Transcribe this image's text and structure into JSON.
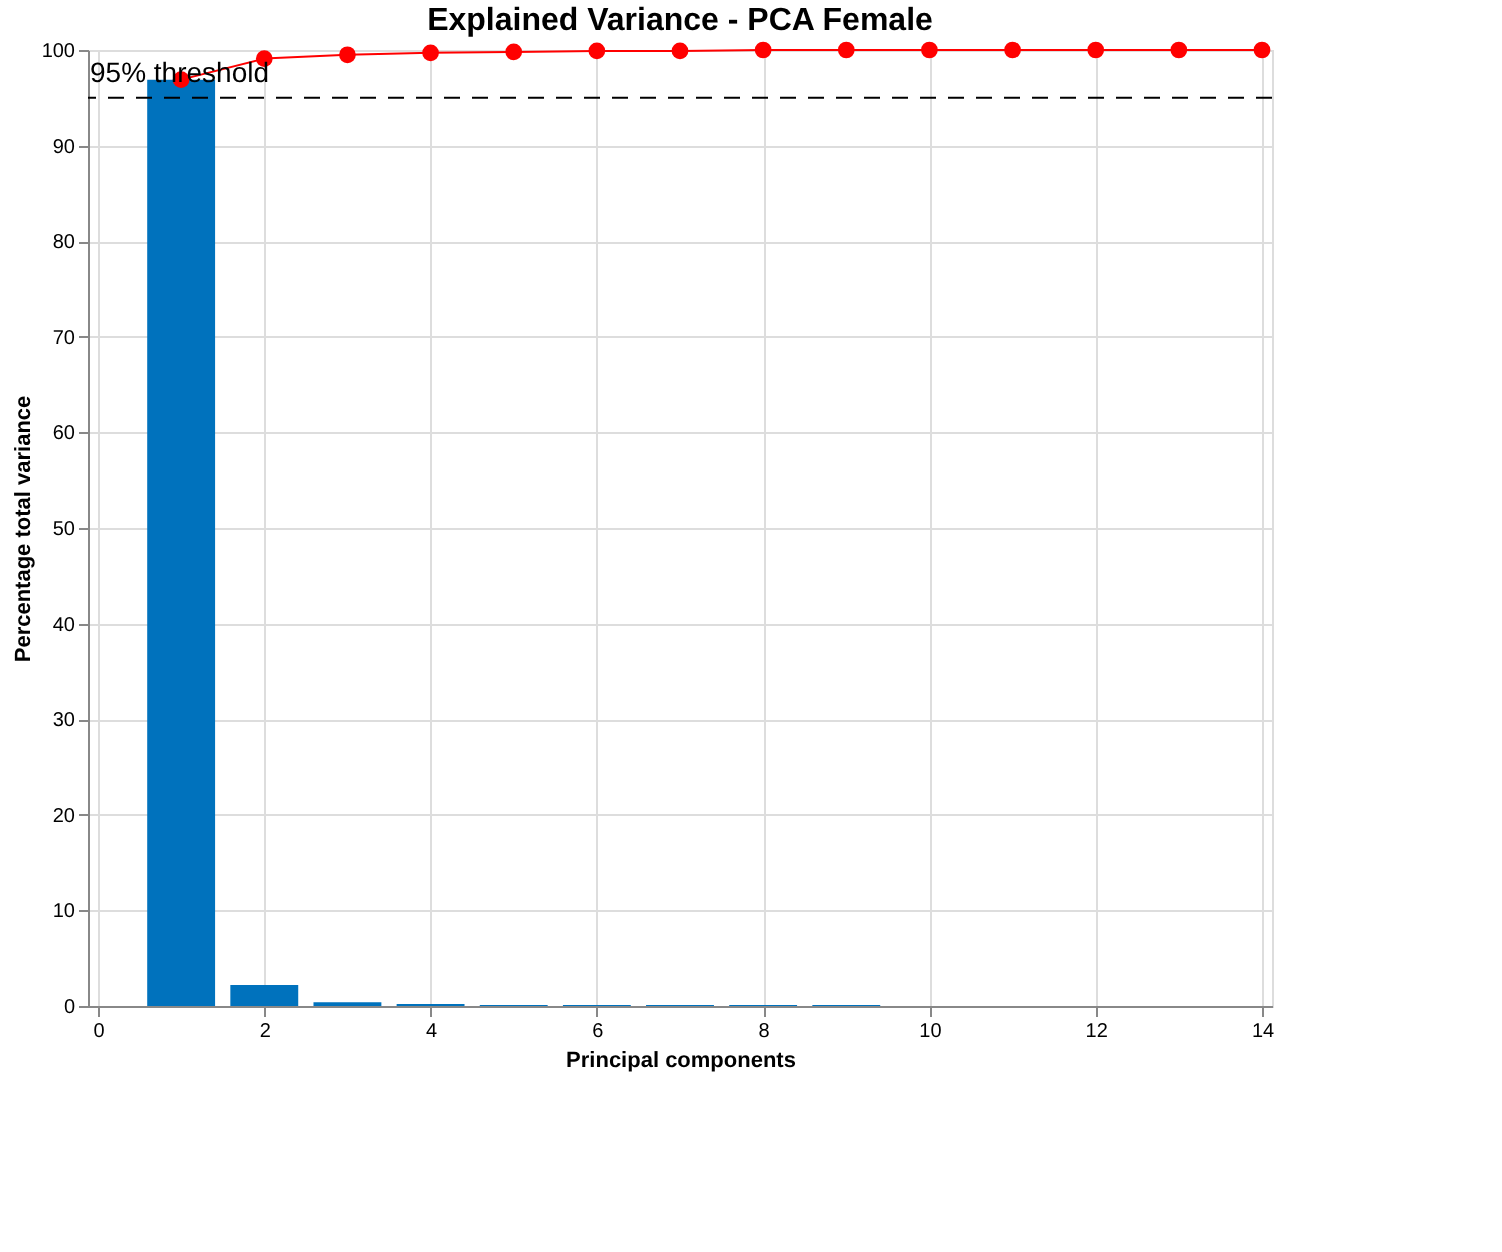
{
  "chart_data": {
    "type": "bar",
    "title": "Explained Variance - PCA Female",
    "xlabel": "Principal components",
    "ylabel": "Percentage total variance",
    "x": [
      1,
      2,
      3,
      4,
      5,
      6,
      7,
      8,
      9,
      10,
      11,
      12,
      13,
      14
    ],
    "series": [
      {
        "color": "#0072bd",
        "values": [
          96.9,
          2.2,
          0.4,
          0.2,
          0.1,
          0.1,
          0.1,
          0.1,
          0.1,
          0,
          0,
          0,
          0,
          0
        ]
      },
      {
        "type": "line",
        "color": "#ff0000",
        "marker": "circle",
        "values": [
          96.9,
          99.1,
          99.5,
          99.7,
          99.8,
          99.9,
          99.9,
          100,
          100,
          100,
          100,
          100,
          100,
          100
        ]
      }
    ],
    "xlim": [
      0,
      14
    ],
    "xticks": [
      0,
      2,
      4,
      6,
      8,
      10,
      12,
      14
    ],
    "ylim": [
      0,
      100
    ],
    "yticks": [
      0,
      10,
      20,
      30,
      40,
      50,
      60,
      70,
      80,
      90,
      100
    ],
    "grid": true,
    "ref_lines": [
      {
        "axis": "y",
        "value": 95,
        "label": "95% threshold",
        "color": "#000000",
        "line_style": "dashed"
      }
    ]
  }
}
